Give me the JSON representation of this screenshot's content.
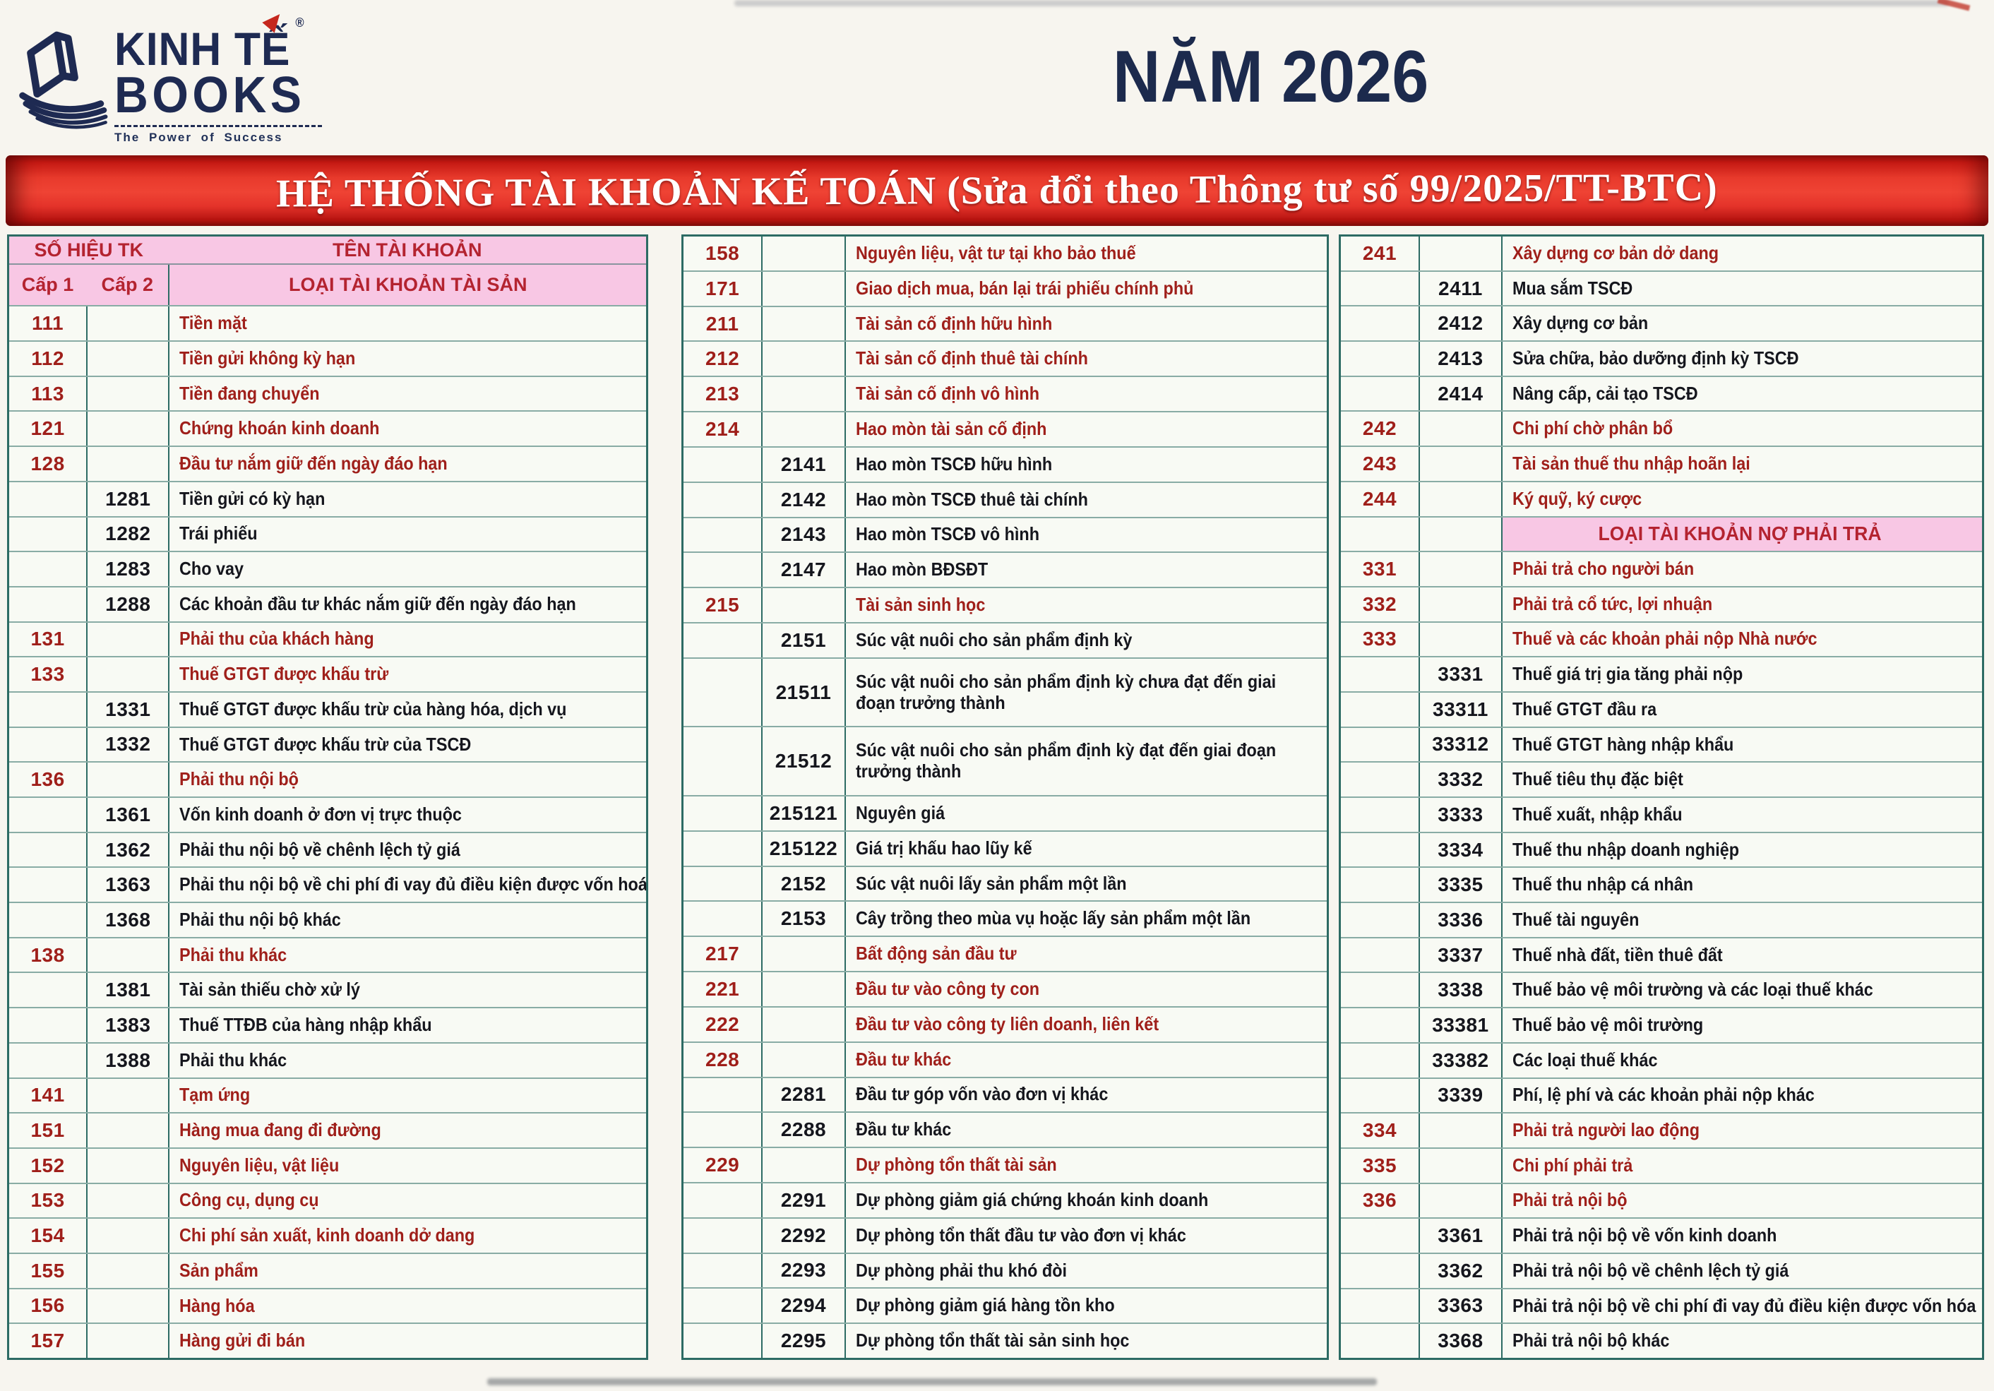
{
  "page": {
    "year_title": "NĂM 2026",
    "banner_title": "HỆ THỐNG TÀI KHOẢN KẾ TOÁN (Sửa đổi theo Thông tư số 99/2025/TT-BTC)"
  },
  "logo": {
    "name_line1": "KINH TẾ",
    "name_line2": "BOOKS",
    "registered_mark": "®",
    "tagline": "The Power of Success"
  },
  "table_header": {
    "account_number": "SỐ HIỆU TK",
    "account_name": "TÊN TÀI KHOẢN",
    "level1": "Cấp 1",
    "level2": "Cấp 2",
    "asset_section_label": "LOẠI TÀI KHOẢN TÀI SẢN",
    "liability_section_label": "LOẠI TÀI KHOẢN NỢ PHẢI TRẢ"
  },
  "colors": {
    "banner_red": "#e4332a",
    "header_pink": "#f8c7e4",
    "level1_text": "#9f1f1a",
    "level2_text": "#15161d",
    "border_teal": "#2d6b64",
    "logo_navy": "#1e2a52",
    "accent_red": "#c5271d",
    "title_navy": "#1c2a4d"
  },
  "columns": [
    {
      "id": "assets-left",
      "rows": [
        {
          "c1": "111",
          "c2": "",
          "name": "Tiền mặt",
          "level": 1,
          "span": 1
        },
        {
          "c1": "112",
          "c2": "",
          "name": "Tiền gửi không kỳ hạn",
          "level": 1,
          "span": 1
        },
        {
          "c1": "113",
          "c2": "",
          "name": "Tiền đang chuyển",
          "level": 1,
          "span": 1
        },
        {
          "c1": "121",
          "c2": "",
          "name": "Chứng khoán kinh doanh",
          "level": 1,
          "span": 1
        },
        {
          "c1": "128",
          "c2": "",
          "name": "Đầu tư nắm giữ đến ngày đáo hạn",
          "level": 1,
          "span": 1
        },
        {
          "c1": "",
          "c2": "1281",
          "name": "Tiền gửi có kỳ hạn",
          "level": 2,
          "span": 1
        },
        {
          "c1": "",
          "c2": "1282",
          "name": "Trái phiếu",
          "level": 2,
          "span": 1
        },
        {
          "c1": "",
          "c2": "1283",
          "name": "Cho vay",
          "level": 2,
          "span": 1
        },
        {
          "c1": "",
          "c2": "1288",
          "name": "Các khoản đầu tư khác nắm giữ đến ngày đáo hạn",
          "level": 2,
          "span": 1
        },
        {
          "c1": "131",
          "c2": "",
          "name": "Phải thu của khách hàng",
          "level": 1,
          "span": 1
        },
        {
          "c1": "133",
          "c2": "",
          "name": "Thuế GTGT được khấu trừ",
          "level": 1,
          "span": 1
        },
        {
          "c1": "",
          "c2": "1331",
          "name": "Thuế GTGT được khấu trừ của hàng hóa, dịch vụ",
          "level": 2,
          "span": 1
        },
        {
          "c1": "",
          "c2": "1332",
          "name": "Thuế GTGT được khấu trừ của TSCĐ",
          "level": 2,
          "span": 1
        },
        {
          "c1": "136",
          "c2": "",
          "name": "Phải thu nội bộ",
          "level": 1,
          "span": 1
        },
        {
          "c1": "",
          "c2": "1361",
          "name": "Vốn kinh doanh ở đơn vị trực thuộc",
          "level": 2,
          "span": 1
        },
        {
          "c1": "",
          "c2": "1362",
          "name": "Phải thu nội bộ về chênh lệch tỷ giá",
          "level": 2,
          "span": 1
        },
        {
          "c1": "",
          "c2": "1363",
          "name": "Phải thu nội bộ về chi phí đi vay đủ điều kiện được vốn hoá",
          "level": 2,
          "span": 1
        },
        {
          "c1": "",
          "c2": "1368",
          "name": "Phải thu nội bộ khác",
          "level": 2,
          "span": 1
        },
        {
          "c1": "138",
          "c2": "",
          "name": "Phải thu khác",
          "level": 1,
          "span": 1
        },
        {
          "c1": "",
          "c2": "1381",
          "name": "Tài sản thiếu chờ xử lý",
          "level": 2,
          "span": 1
        },
        {
          "c1": "",
          "c2": "1383",
          "name": "Thuế TTĐB của hàng nhập khẩu",
          "level": 2,
          "span": 1
        },
        {
          "c1": "",
          "c2": "1388",
          "name": "Phải thu khác",
          "level": 2,
          "span": 1
        },
        {
          "c1": "141",
          "c2": "",
          "name": "Tạm ứng",
          "level": 1,
          "span": 1
        },
        {
          "c1": "151",
          "c2": "",
          "name": "Hàng mua đang đi đường",
          "level": 1,
          "span": 1
        },
        {
          "c1": "152",
          "c2": "",
          "name": "Nguyên liệu, vật liệu",
          "level": 1,
          "span": 1
        },
        {
          "c1": "153",
          "c2": "",
          "name": "Công cụ, dụng cụ",
          "level": 1,
          "span": 1
        },
        {
          "c1": "154",
          "c2": "",
          "name": "Chi phí sản xuất, kinh doanh dở dang",
          "level": 1,
          "span": 1
        },
        {
          "c1": "155",
          "c2": "",
          "name": "Sản phẩm",
          "level": 1,
          "span": 1
        },
        {
          "c1": "156",
          "c2": "",
          "name": "Hàng hóa",
          "level": 1,
          "span": 1
        },
        {
          "c1": "157",
          "c2": "",
          "name": "Hàng gửi đi bán",
          "level": 1,
          "span": 1
        }
      ]
    },
    {
      "id": "assets-middle",
      "rows": [
        {
          "c1": "158",
          "c2": "",
          "name": "Nguyên liệu, vật tư tại kho bảo thuế",
          "level": 1,
          "span": 1
        },
        {
          "c1": "171",
          "c2": "",
          "name": "Giao dịch mua, bán lại trái phiếu chính phủ",
          "level": 1,
          "span": 1
        },
        {
          "c1": "211",
          "c2": "",
          "name": "Tài sản cố định hữu hình",
          "level": 1,
          "span": 1
        },
        {
          "c1": "212",
          "c2": "",
          "name": "Tài sản cố định thuê tài chính",
          "level": 1,
          "span": 1
        },
        {
          "c1": "213",
          "c2": "",
          "name": "Tài sản cố định vô hình",
          "level": 1,
          "span": 1
        },
        {
          "c1": "214",
          "c2": "",
          "name": "Hao mòn tài sản cố định",
          "level": 1,
          "span": 1
        },
        {
          "c1": "",
          "c2": "2141",
          "name": "Hao mòn TSCĐ hữu hình",
          "level": 2,
          "span": 1
        },
        {
          "c1": "",
          "c2": "2142",
          "name": "Hao mòn TSCĐ thuê tài chính",
          "level": 2,
          "span": 1
        },
        {
          "c1": "",
          "c2": "2143",
          "name": "Hao mòn TSCĐ vô hình",
          "level": 2,
          "span": 1
        },
        {
          "c1": "",
          "c2": "2147",
          "name": "Hao mòn BĐSĐT",
          "level": 2,
          "span": 1
        },
        {
          "c1": "215",
          "c2": "",
          "name": "Tài sản sinh học",
          "level": 1,
          "span": 1
        },
        {
          "c1": "",
          "c2": "2151",
          "name": "Súc vật nuôi cho sản phẩm định kỳ",
          "level": 2,
          "span": 1
        },
        {
          "c1": "",
          "c2": "21511",
          "name": "Súc vật nuôi cho sản phẩm định kỳ chưa đạt đến giai đoạn trưởng thành",
          "level": 2,
          "span": 2
        },
        {
          "c1": "",
          "c2": "21512",
          "name": "Súc vật nuôi cho sản phẩm định kỳ đạt đến giai đoạn trưởng thành",
          "level": 2,
          "span": 2
        },
        {
          "c1": "",
          "c2": "215121",
          "name": "Nguyên giá",
          "level": 2,
          "span": 1
        },
        {
          "c1": "",
          "c2": "215122",
          "name": "Giá trị khấu hao lũy kế",
          "level": 2,
          "span": 1
        },
        {
          "c1": "",
          "c2": "2152",
          "name": "Súc vật nuôi lấy sản phẩm một lần",
          "level": 2,
          "span": 1
        },
        {
          "c1": "",
          "c2": "2153",
          "name": "Cây trồng theo mùa vụ hoặc lấy sản phẩm một lần",
          "level": 2,
          "span": 1
        },
        {
          "c1": "217",
          "c2": "",
          "name": "Bất động sản đầu tư",
          "level": 1,
          "span": 1
        },
        {
          "c1": "221",
          "c2": "",
          "name": "Đầu tư vào công ty con",
          "level": 1,
          "span": 1
        },
        {
          "c1": "222",
          "c2": "",
          "name": "Đầu tư vào công ty liên doanh, liên kết",
          "level": 1,
          "span": 1
        },
        {
          "c1": "228",
          "c2": "",
          "name": "Đầu tư khác",
          "level": 1,
          "span": 1
        },
        {
          "c1": "",
          "c2": "2281",
          "name": "Đầu tư góp vốn vào đơn vị khác",
          "level": 2,
          "span": 1
        },
        {
          "c1": "",
          "c2": "2288",
          "name": "Đầu tư khác",
          "level": 2,
          "span": 1
        },
        {
          "c1": "229",
          "c2": "",
          "name": "Dự phòng tổn thất tài sản",
          "level": 1,
          "span": 1
        },
        {
          "c1": "",
          "c2": "2291",
          "name": "Dự phòng giảm giá chứng khoán kinh doanh",
          "level": 2,
          "span": 1
        },
        {
          "c1": "",
          "c2": "2292",
          "name": "Dự phòng tổn thất đầu tư vào đơn vị khác",
          "level": 2,
          "span": 1
        },
        {
          "c1": "",
          "c2": "2293",
          "name": "Dự phòng phải thu khó đòi",
          "level": 2,
          "span": 1
        },
        {
          "c1": "",
          "c2": "2294",
          "name": "Dự phòng giảm giá hàng tồn kho",
          "level": 2,
          "span": 1
        },
        {
          "c1": "",
          "c2": "2295",
          "name": "Dự phòng tổn thất tài sản sinh học",
          "level": 2,
          "span": 1
        }
      ]
    },
    {
      "id": "liabilities-right",
      "rows": [
        {
          "c1": "241",
          "c2": "",
          "name": "Xây dựng cơ bản dở dang",
          "level": 1,
          "span": 1
        },
        {
          "c1": "",
          "c2": "2411",
          "name": "Mua sắm TSCĐ",
          "level": 2,
          "span": 1
        },
        {
          "c1": "",
          "c2": "2412",
          "name": "Xây dựng cơ bản",
          "level": 2,
          "span": 1
        },
        {
          "c1": "",
          "c2": "2413",
          "name": "Sửa chữa, bảo dưỡng định kỳ TSCĐ",
          "level": 2,
          "span": 1
        },
        {
          "c1": "",
          "c2": "2414",
          "name": "Nâng cấp, cải tạo TSCĐ",
          "level": 2,
          "span": 1
        },
        {
          "c1": "242",
          "c2": "",
          "name": "Chi phí chờ phân bổ",
          "level": 1,
          "span": 1
        },
        {
          "c1": "243",
          "c2": "",
          "name": "Tài sản thuế thu nhập hoãn lại",
          "level": 1,
          "span": 1
        },
        {
          "c1": "244",
          "c2": "",
          "name": "Ký quỹ, ký cược",
          "level": 1,
          "span": 1
        },
        {
          "type": "section",
          "name": "LOẠI TÀI KHOẢN NỢ PHẢI TRẢ",
          "span": 1
        },
        {
          "c1": "331",
          "c2": "",
          "name": "Phải trả cho người bán",
          "level": 1,
          "span": 1
        },
        {
          "c1": "332",
          "c2": "",
          "name": "Phải trả cổ tức, lợi nhuận",
          "level": 1,
          "span": 1
        },
        {
          "c1": "333",
          "c2": "",
          "name": "Thuế và các khoản phải nộp Nhà nước",
          "level": 1,
          "span": 1
        },
        {
          "c1": "",
          "c2": "3331",
          "name": "Thuế giá trị gia tăng phải nộp",
          "level": 2,
          "span": 1
        },
        {
          "c1": "",
          "c2": "33311",
          "name": "Thuế GTGT đầu ra",
          "level": 2,
          "span": 1
        },
        {
          "c1": "",
          "c2": "33312",
          "name": "Thuế GTGT hàng nhập khẩu",
          "level": 2,
          "span": 1
        },
        {
          "c1": "",
          "c2": "3332",
          "name": "Thuế tiêu thụ đặc biệt",
          "level": 2,
          "span": 1
        },
        {
          "c1": "",
          "c2": "3333",
          "name": "Thuế xuất, nhập khẩu",
          "level": 2,
          "span": 1
        },
        {
          "c1": "",
          "c2": "3334",
          "name": "Thuế thu nhập doanh nghiệp",
          "level": 2,
          "span": 1
        },
        {
          "c1": "",
          "c2": "3335",
          "name": "Thuế thu nhập cá nhân",
          "level": 2,
          "span": 1
        },
        {
          "c1": "",
          "c2": "3336",
          "name": "Thuế tài nguyên",
          "level": 2,
          "span": 1
        },
        {
          "c1": "",
          "c2": "3337",
          "name": "Thuế nhà đất, tiền thuê đất",
          "level": 2,
          "span": 1
        },
        {
          "c1": "",
          "c2": "3338",
          "name": "Thuế bảo vệ môi trường và các loại thuế khác",
          "level": 2,
          "span": 1
        },
        {
          "c1": "",
          "c2": "33381",
          "name": "Thuế bảo vệ môi trường",
          "level": 2,
          "span": 1
        },
        {
          "c1": "",
          "c2": "33382",
          "name": "Các loại thuế khác",
          "level": 2,
          "span": 1
        },
        {
          "c1": "",
          "c2": "3339",
          "name": "Phí, lệ phí và các khoản phải nộp khác",
          "level": 2,
          "span": 1
        },
        {
          "c1": "334",
          "c2": "",
          "name": "Phải trả người lao động",
          "level": 1,
          "span": 1
        },
        {
          "c1": "335",
          "c2": "",
          "name": "Chi phí phải trả",
          "level": 1,
          "span": 1
        },
        {
          "c1": "336",
          "c2": "",
          "name": "Phải trả nội bộ",
          "level": 1,
          "span": 1
        },
        {
          "c1": "",
          "c2": "3361",
          "name": "Phải trả nội bộ về vốn kinh doanh",
          "level": 2,
          "span": 1
        },
        {
          "c1": "",
          "c2": "3362",
          "name": "Phải trả nội bộ về chênh lệch tỷ giá",
          "level": 2,
          "span": 1
        },
        {
          "c1": "",
          "c2": "3363",
          "name": "Phải trả nội bộ về chi phí đi vay đủ điều kiện được vốn hóa",
          "level": 2,
          "span": 1
        },
        {
          "c1": "",
          "c2": "3368",
          "name": "Phải trả nội bộ khác",
          "level": 2,
          "span": 1
        }
      ]
    }
  ]
}
